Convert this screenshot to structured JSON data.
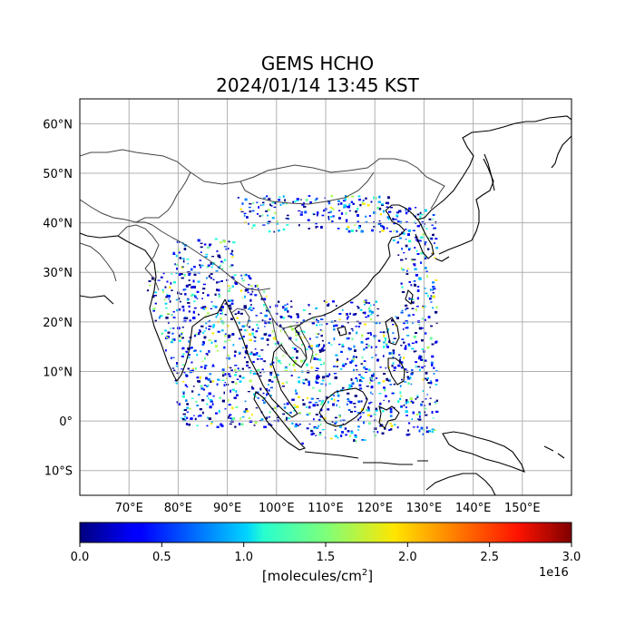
{
  "title_line1": "GEMS HCHO",
  "title_line2": "2024/01/14 13:45 KST",
  "map": {
    "lon_range": [
      60,
      160
    ],
    "lat_range": [
      -15,
      65
    ],
    "lon_ticks": [
      {
        "value": 70,
        "label": "70°E"
      },
      {
        "value": 80,
        "label": "80°E"
      },
      {
        "value": 90,
        "label": "90°E"
      },
      {
        "value": 100,
        "label": "100°E"
      },
      {
        "value": 110,
        "label": "110°E"
      },
      {
        "value": 120,
        "label": "120°E"
      },
      {
        "value": 130,
        "label": "130°E"
      },
      {
        "value": 140,
        "label": "140°E"
      },
      {
        "value": 150,
        "label": "150°E"
      }
    ],
    "lat_ticks": [
      {
        "value": 60,
        "label": "60°N"
      },
      {
        "value": 50,
        "label": "50°N"
      },
      {
        "value": 40,
        "label": "40°N"
      },
      {
        "value": 30,
        "label": "30°N"
      },
      {
        "value": 20,
        "label": "20°N"
      },
      {
        "value": 10,
        "label": "10°N"
      },
      {
        "value": 0,
        "label": "0°"
      },
      {
        "value": -10,
        "label": "10°S"
      }
    ],
    "grid": true,
    "coastline_color": "#000000",
    "border_color": "#444444"
  },
  "colorbar": {
    "min": 0.0,
    "max": 3.0,
    "ticks": [
      "0.0",
      "0.5",
      "1.0",
      "1.5",
      "2.0",
      "2.5",
      "3.0"
    ],
    "label_text": "[molecules/cm",
    "label_sup": "2",
    "label_close": "]",
    "exponent": "1e16",
    "colormap": "jet"
  }
}
